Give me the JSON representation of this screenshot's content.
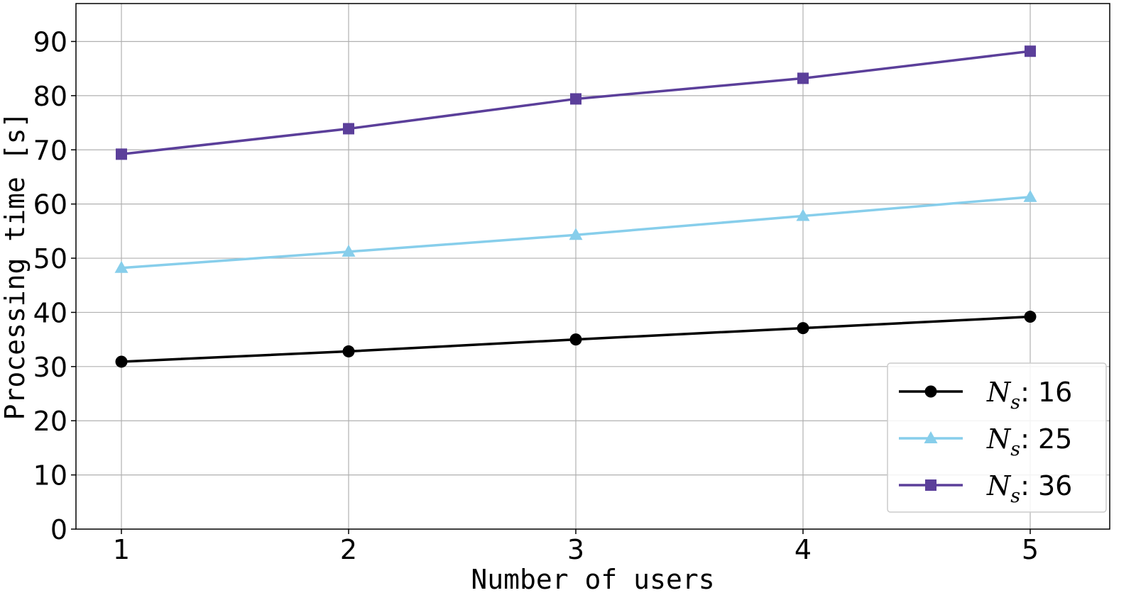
{
  "chart_data": {
    "type": "line",
    "xlabel": "Number of users",
    "ylabel": "Processing time [s]",
    "x": [
      1,
      2,
      3,
      4,
      5
    ],
    "xticks": [
      "1",
      "2",
      "3",
      "4",
      "5"
    ],
    "xlim": [
      0.8,
      5.35
    ],
    "ylim": [
      0,
      97
    ],
    "yticks": [
      "0",
      "10",
      "20",
      "30",
      "40",
      "50",
      "60",
      "70",
      "80",
      "90"
    ],
    "grid": true,
    "legend_position": "bottom-right",
    "series": [
      {
        "name": "N_s: 16",
        "legend_symbol": "N",
        "legend_sub": "s",
        "legend_value": ": 16",
        "color": "#000000",
        "marker": "circle",
        "values": [
          30.9,
          32.8,
          35.0,
          37.1,
          39.2
        ]
      },
      {
        "name": "N_s: 25",
        "legend_symbol": "N",
        "legend_sub": "s",
        "legend_value": ": 25",
        "color": "#87ceeb",
        "marker": "triangle",
        "values": [
          48.2,
          51.2,
          54.3,
          57.8,
          61.3
        ]
      },
      {
        "name": "N_s: 36",
        "legend_symbol": "N",
        "legend_sub": "s",
        "legend_value": ": 36",
        "color": "#5b3f9a",
        "marker": "square",
        "values": [
          69.2,
          73.9,
          79.4,
          83.2,
          88.2
        ]
      }
    ]
  }
}
